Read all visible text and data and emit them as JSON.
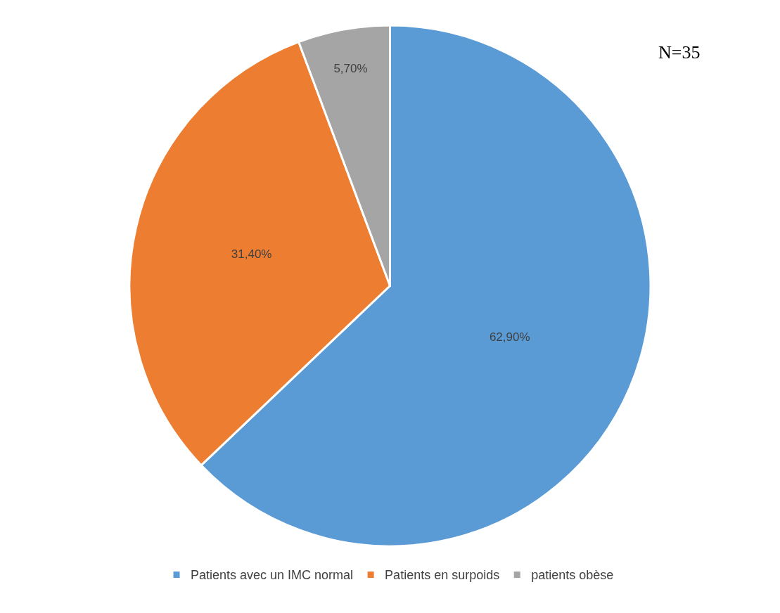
{
  "chart_data": {
    "type": "pie",
    "categories": [
      "Patients avec un IMC normal",
      "Patients en surpoids",
      "patients obèse"
    ],
    "values": [
      62.9,
      31.4,
      5.7
    ],
    "value_labels": [
      "62,90%",
      "31,40%",
      "5,70%"
    ],
    "colors": [
      "#5b9bd5",
      "#ed7d31",
      "#a5a5a5"
    ],
    "annotations": [
      "N=35"
    ],
    "legend": "bottom"
  }
}
